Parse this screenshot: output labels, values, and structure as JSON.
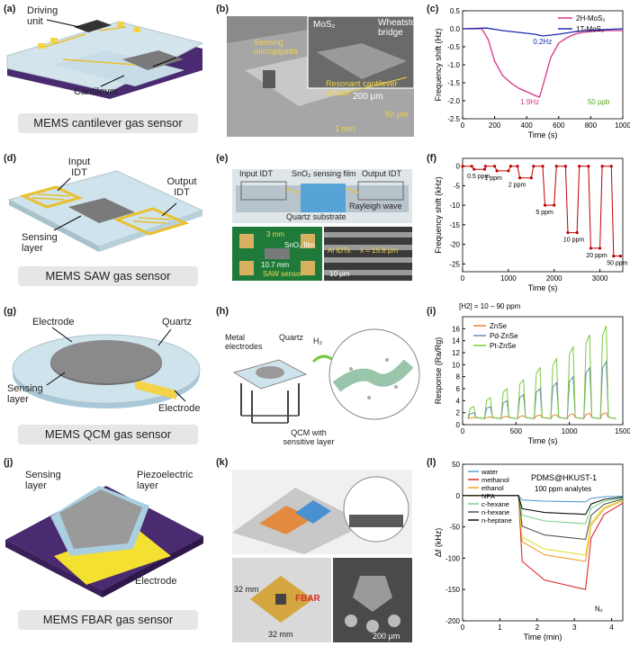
{
  "figure": {
    "rows": [
      {
        "schematic": {
          "label": "(a)",
          "caption": "MEMS cantilever gas sensor",
          "annotations": [
            "Driving unit",
            "Cantilever"
          ]
        },
        "image": {
          "label": "(b)",
          "annotations": [
            "MoS₂",
            "Wheatstone bridge",
            "Resonant cantilever sensor",
            "200 μm",
            "Sensing micropipette",
            "50 μm",
            "1 mm"
          ]
        },
        "plot": {
          "label": "(c)"
        }
      },
      {
        "schematic": {
          "label": "(d)",
          "caption": "MEMS SAW gas sensor",
          "annotations": [
            "Input IDT",
            "Output IDT",
            "Sensing layer"
          ]
        },
        "image": {
          "label": "(e)",
          "annotations": [
            "Input IDT",
            "SnO₂ sensing film",
            "Output IDT",
            "Quartz substrate",
            "Rayleigh wave",
            "3 mm",
            "SnO₂ film",
            "10.7 mm",
            "SAW sensor",
            "Al IDTs",
            "λ = 15.8 μm",
            "10 μm"
          ]
        },
        "plot": {
          "label": "(f)"
        }
      },
      {
        "schematic": {
          "label": "(g)",
          "caption": "MEMS QCM gas sensor",
          "annotations": [
            "Electrode",
            "Quartz",
            "Sensing layer",
            "Electrode"
          ]
        },
        "image": {
          "label": "(h)",
          "annotations": [
            "Metal electrodes",
            "Quartz",
            "H₂",
            "QCM with sensitive layer"
          ]
        },
        "plot": {
          "label": "(i)"
        }
      },
      {
        "schematic": {
          "label": "(j)",
          "caption": "MEMS FBAR gas sensor",
          "annotations": [
            "Sensing layer",
            "Piezoelectric layer",
            "Electrode"
          ]
        },
        "image": {
          "label": "(k)",
          "annotations": [
            "FBAR",
            "32 mm",
            "32 mm",
            "200 μm"
          ]
        },
        "plot": {
          "label": "(l)"
        }
      }
    ]
  },
  "chart_data": [
    {
      "id": "c",
      "type": "line",
      "xlabel": "Time (s)",
      "ylabel": "Frequency shift (Hz)",
      "xlim": [
        0,
        1000
      ],
      "ylim": [
        -2.5,
        0.5
      ],
      "xticks": [
        0,
        200,
        400,
        600,
        800,
        1000
      ],
      "yticks": [
        0.5,
        0.0,
        -0.5,
        -1.0,
        -1.5,
        -2.0,
        -2.5
      ],
      "ytick_labels": [
        "0.5",
        "0.0",
        "-0.5",
        "-1.0",
        "-1.5",
        "-2.0",
        "-2.5"
      ],
      "series": [
        {
          "name": "2H-MoS₂",
          "color": "#d6338a",
          "x": [
            0,
            120,
            160,
            200,
            250,
            300,
            350,
            400,
            450,
            480,
            500,
            550,
            600,
            650,
            700,
            750,
            800,
            850,
            900,
            1000
          ],
          "y": [
            0,
            0,
            -0.3,
            -0.9,
            -1.3,
            -1.5,
            -1.65,
            -1.75,
            -1.85,
            -1.9,
            -1.6,
            -0.8,
            -0.4,
            -0.25,
            -0.15,
            -0.1,
            -0.08,
            -0.06,
            -0.05,
            -0.05
          ]
        },
        {
          "name": "1T-MoS₂",
          "color": "#1a2bb0",
          "x": [
            0,
            150,
            250,
            350,
            450,
            500,
            600,
            700,
            800,
            900,
            1000
          ],
          "y": [
            0,
            0.02,
            -0.05,
            -0.1,
            -0.15,
            -0.2,
            -0.15,
            -0.08,
            -0.04,
            -0.02,
            0
          ]
        }
      ],
      "annotations": [
        "0.2Hz",
        "1.9Hz",
        "50 ppb"
      ],
      "legend": "top-right"
    },
    {
      "id": "f",
      "type": "line",
      "xlabel": "Time (s)",
      "ylabel": "Frequency shift (kHz)",
      "xlim": [
        0,
        3500
      ],
      "ylim": [
        -27,
        2
      ],
      "xticks": [
        0,
        1000,
        2000,
        3000
      ],
      "yticks": [
        0,
        -5,
        -10,
        -15,
        -20,
        -25
      ],
      "series": [
        {
          "name": "response",
          "color": "#c00000",
          "x": [
            0,
            200,
            250,
            480,
            500,
            700,
            750,
            1000,
            1050,
            1200,
            1250,
            1500,
            1550,
            1750,
            1800,
            2000,
            2050,
            2250,
            2300,
            2500,
            2550,
            2750,
            2800,
            3000,
            3050,
            3250,
            3300,
            3450
          ],
          "y": [
            0,
            0,
            -0.8,
            -0.8,
            0,
            0,
            -1.2,
            -1.2,
            0,
            0,
            -3,
            -3,
            0,
            0,
            -10,
            -10,
            0,
            0,
            -17,
            -17,
            0,
            0,
            -21,
            -21,
            0,
            0,
            -23,
            -23
          ]
        }
      ],
      "point_labels": [
        "0.5 ppm",
        "1 ppm",
        "2 ppm",
        "5 ppm",
        "10 ppm",
        "20 ppm",
        "50 ppm"
      ]
    },
    {
      "id": "i",
      "type": "line",
      "title": "[H2] = 10 – 90 ppm",
      "xlabel": "Time (s)",
      "ylabel": "Response (Ra/Rg)",
      "xlim": [
        0,
        1500
      ],
      "ylim": [
        0,
        18
      ],
      "xticks": [
        0,
        500,
        1000,
        1500
      ],
      "yticks": [
        0,
        2,
        4,
        6,
        8,
        10,
        12,
        14,
        16
      ],
      "series": [
        {
          "name": "ZnSe",
          "color": "#f08030",
          "peaks": [
            1.2,
            1.3,
            1.4,
            1.5,
            1.6,
            1.7,
            1.8,
            1.9,
            2.0
          ]
        },
        {
          "name": "Pd-ZnSe",
          "color": "#6a8ab5",
          "peaks": [
            2.0,
            3.0,
            4.0,
            5.0,
            6.0,
            7.0,
            8.0,
            9.5,
            10.5
          ]
        },
        {
          "name": "Pt-ZnSe",
          "color": "#7ac943",
          "peaks": [
            3.0,
            4.5,
            6.0,
            7.5,
            9.5,
            11.0,
            13.0,
            15.0,
            16.5
          ]
        }
      ],
      "pulse_count": 9,
      "legend": "top-left"
    },
    {
      "id": "l",
      "type": "line",
      "title": "PDMS@HKUST-1",
      "xlabel": "Time (min)",
      "ylabel": "Δf (kHz)",
      "xlim": [
        0,
        4.3
      ],
      "ylim": [
        -200,
        50
      ],
      "xticks": [
        0,
        1,
        2,
        3,
        4
      ],
      "yticks": [
        50,
        0,
        -50,
        -100,
        -150,
        -200
      ],
      "series": [
        {
          "name": "water",
          "color": "#5aa0d0",
          "plateau": -10
        },
        {
          "name": "methanol",
          "color": "#d92b2b",
          "plateau": -150
        },
        {
          "name": "ethanol",
          "color": "#f0a030",
          "plateau": -105
        },
        {
          "name": "NPA",
          "color": "#e0e030",
          "plateau": -95
        },
        {
          "name": "c-hexane",
          "color": "#7fd08a",
          "plateau": -45
        },
        {
          "name": "n-hexane",
          "color": "#555555",
          "plateau": -70
        },
        {
          "name": "n-heptane",
          "color": "#111111",
          "plateau": -30
        }
      ],
      "annotations": [
        "100 ppm analytes",
        "N₂"
      ],
      "legend": "top-left"
    }
  ]
}
